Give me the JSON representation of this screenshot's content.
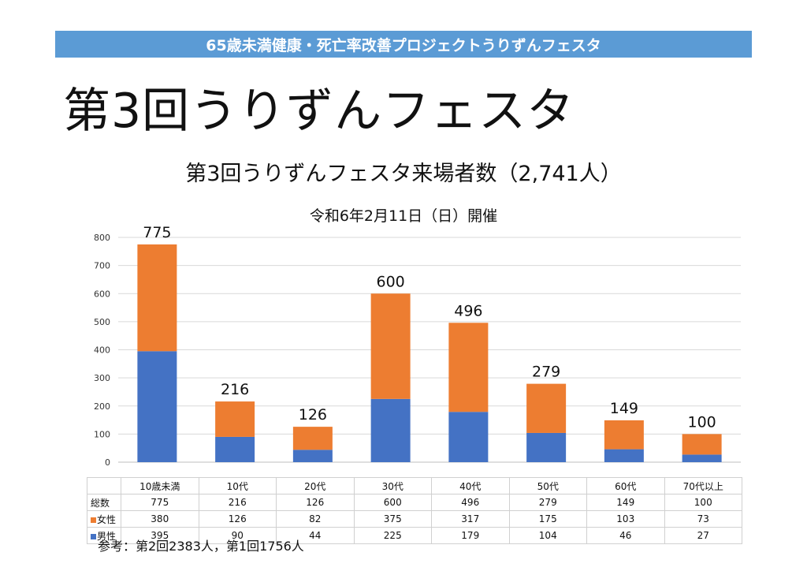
{
  "banner": "65歳未満健康・死亡率改善プロジェクトうりずんフェスタ",
  "slide_title": "第3回うりずんフェスタ",
  "footnote": "参考：第2回2383人，第1回1756人",
  "colors": {
    "female": "#ed7d31",
    "male": "#4472c4",
    "banner": "#5b9bd5"
  },
  "chart_data": {
    "type": "bar",
    "stacked": true,
    "title": "第3回うりずんフェスタ来場者数（2,741人）",
    "subtitle": "令和6年2月11日（日）開催",
    "categories": [
      "10歳未満",
      "10代",
      "20代",
      "30代",
      "40代",
      "50代",
      "60代",
      "70代以上"
    ],
    "series": [
      {
        "name": "男性",
        "values": [
          395,
          90,
          44,
          225,
          179,
          104,
          46,
          27
        ]
      },
      {
        "name": "女性",
        "values": [
          380,
          126,
          82,
          375,
          317,
          175,
          103,
          73
        ]
      }
    ],
    "totals_label": "総数",
    "totals": [
      775,
      216,
      126,
      600,
      496,
      279,
      149,
      100
    ],
    "ylim": [
      0,
      800
    ],
    "yticks": [
      0,
      100,
      200,
      300,
      400,
      500,
      600,
      700,
      800
    ],
    "grid": true,
    "legend": "data-table"
  }
}
